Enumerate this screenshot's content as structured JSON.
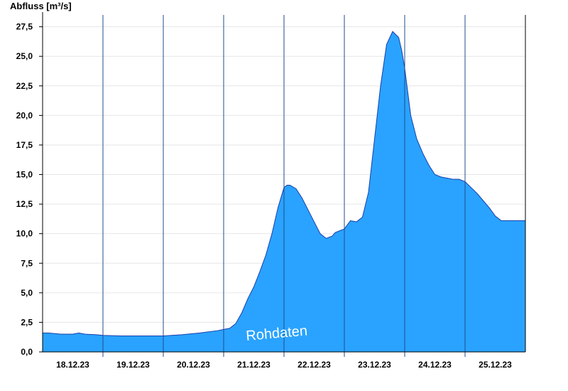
{
  "chart_data": {
    "type": "area",
    "ylabel": "Abfluss [m³/s]",
    "annotation": "Rohdaten",
    "ylim": [
      0,
      28.5
    ],
    "y_ticks": [
      0,
      2.5,
      5,
      7.5,
      10,
      12.5,
      15,
      17.5,
      20,
      22.5,
      25,
      27.5
    ],
    "y_tick_labels": [
      "0,0",
      "2,5",
      "5,0",
      "7,5",
      "10,0",
      "12,5",
      "15,0",
      "17,5",
      "20,0",
      "22,5",
      "25,0",
      "27,5"
    ],
    "x_range_days": [
      0,
      8
    ],
    "x_tick_labels": [
      "18.12.23",
      "19.12.23",
      "20.12.23",
      "21.12.23",
      "22.12.23",
      "23.12.23",
      "24.12.23",
      "25.12.23"
    ],
    "grid": true,
    "fill_color": "#29A3FF",
    "line_color": "#1A3FAA",
    "series": [
      {
        "x": [
          0,
          0.1,
          0.3,
          0.5,
          0.6,
          0.7,
          0.9,
          1.0,
          1.3,
          1.6,
          2.0,
          2.3,
          2.6,
          2.9,
          3.0,
          3.1,
          3.2,
          3.3,
          3.4,
          3.5,
          3.6,
          3.7,
          3.8,
          3.9,
          4.0,
          4.05,
          4.1,
          4.2,
          4.3,
          4.4,
          4.5,
          4.6,
          4.7,
          4.8,
          4.85,
          4.9,
          5.0,
          5.1,
          5.2,
          5.3,
          5.4,
          5.5,
          5.6,
          5.7,
          5.8,
          5.9,
          5.95,
          6.0,
          6.05,
          6.1,
          6.2,
          6.3,
          6.4,
          6.5,
          6.6,
          6.7,
          6.8,
          6.9,
          7.0,
          7.1,
          7.2,
          7.3,
          7.4,
          7.5,
          7.6,
          7.7,
          7.8,
          7.9,
          8.0
        ],
        "values": [
          1.6,
          1.6,
          1.5,
          1.5,
          1.6,
          1.5,
          1.45,
          1.4,
          1.35,
          1.35,
          1.35,
          1.45,
          1.6,
          1.8,
          1.9,
          2.0,
          2.4,
          3.3,
          4.5,
          5.5,
          6.8,
          8.2,
          10.0,
          12.2,
          13.9,
          14.1,
          14.1,
          13.8,
          13.0,
          12.0,
          11.0,
          10.0,
          9.6,
          9.8,
          10.1,
          10.2,
          10.4,
          11.1,
          11.0,
          11.4,
          13.5,
          18.0,
          22.5,
          26.0,
          27.1,
          26.6,
          25.5,
          24.0,
          22.0,
          20.0,
          18.0,
          16.8,
          15.8,
          15.0,
          14.8,
          14.7,
          14.6,
          14.6,
          14.4,
          13.9,
          13.4,
          12.8,
          12.2,
          11.5,
          11.1,
          11.1,
          11.1,
          11.1,
          11.1
        ]
      }
    ]
  }
}
